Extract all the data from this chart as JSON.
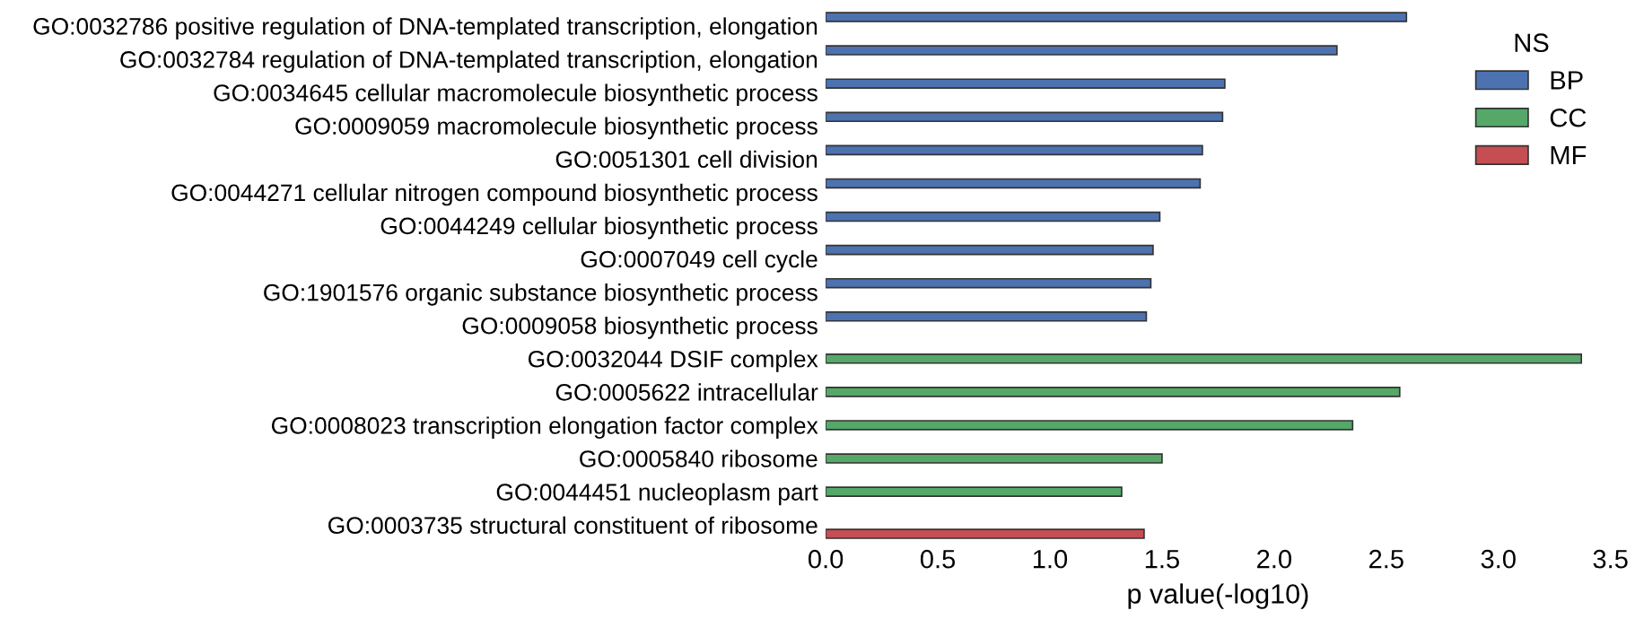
{
  "chart_data": {
    "type": "bar",
    "orientation": "horizontal",
    "xlabel": "p value(-log10)",
    "legend_title": "NS",
    "legend": "top right",
    "grid": false,
    "categories": [
      "GO:0032786 positive regulation of DNA-templated transcription, elongation",
      "GO:0032784 regulation of DNA-templated transcription, elongation",
      "GO:0034645 cellular macromolecule biosynthetic process",
      "GO:0009059 macromolecule biosynthetic process",
      "GO:0051301 cell division",
      "GO:0044271 cellular nitrogen compound biosynthetic process",
      "GO:0044249 cellular biosynthetic process",
      "GO:0007049 cell cycle",
      "GO:1901576 organic substance biosynthetic process",
      "GO:0009058 biosynthetic process",
      "GO:0032044 DSIF complex",
      "GO:0005622 intracellular",
      "GO:0008023 transcription elongation factor complex",
      "GO:0005840 ribosome",
      "GO:0044451 nucleoplasm part",
      "GO:0003735 structural constituent of ribosome"
    ],
    "series": [
      {
        "name": "BP",
        "color": "#4c72b0",
        "values": [
          2.59,
          2.28,
          1.78,
          1.77,
          1.68,
          1.67,
          1.49,
          1.46,
          1.45,
          1.43,
          null,
          null,
          null,
          null,
          null,
          null
        ]
      },
      {
        "name": "CC",
        "color": "#55a868",
        "values": [
          null,
          null,
          null,
          null,
          null,
          null,
          null,
          null,
          null,
          null,
          3.37,
          2.56,
          2.35,
          1.5,
          1.32,
          null
        ]
      },
      {
        "name": "MF",
        "color": "#c44e52",
        "values": [
          null,
          null,
          null,
          null,
          null,
          null,
          null,
          null,
          null,
          null,
          null,
          null,
          null,
          null,
          null,
          1.42
        ]
      }
    ],
    "xlim": [
      0,
      3.5
    ],
    "xticks": [
      {
        "value": 0,
        "label": "0.0"
      },
      {
        "value": 0.5,
        "label": "0.5"
      },
      {
        "value": 1,
        "label": "1.0"
      },
      {
        "value": 1.5,
        "label": "1.5"
      },
      {
        "value": 2,
        "label": "2.0"
      },
      {
        "value": 2.5,
        "label": "2.5"
      },
      {
        "value": 3,
        "label": "3.0"
      },
      {
        "value": 3.5,
        "label": "3.5"
      }
    ]
  }
}
